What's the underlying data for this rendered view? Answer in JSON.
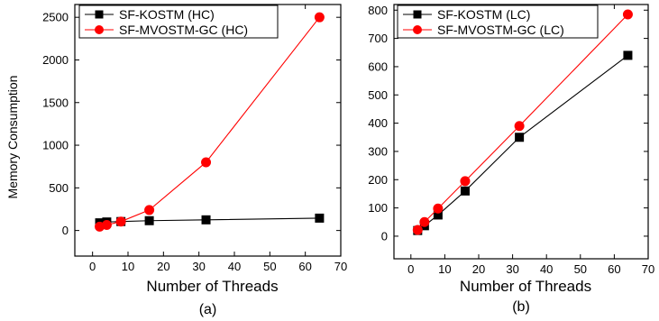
{
  "chart_data": [
    {
      "type": "line",
      "caption": "(a)",
      "xlabel": "Number of Threads",
      "ylabel": "Memory Consumption",
      "xlim": [
        -5,
        70
      ],
      "ylim": [
        -300,
        2650
      ],
      "xticks": [
        0,
        10,
        20,
        30,
        40,
        50,
        60,
        70
      ],
      "yticks": [
        0,
        500,
        1000,
        1500,
        2000,
        2500
      ],
      "legend": "top-left",
      "x": [
        2,
        4,
        8,
        16,
        32,
        64
      ],
      "series": [
        {
          "name": "SF-KOSTM (HC)",
          "marker": "square",
          "color": "#000000",
          "values": [
            90,
            100,
            105,
            115,
            125,
            145
          ]
        },
        {
          "name": "SF-MVOSTM-GC (HC)",
          "marker": "circle",
          "color": "#ff0000",
          "values": [
            45,
            65,
            105,
            240,
            800,
            2500
          ]
        }
      ]
    },
    {
      "type": "line",
      "caption": "(b)",
      "xlabel": "Number of Threads",
      "ylabel": "",
      "xlim": [
        -5,
        70
      ],
      "ylim": [
        -80,
        820
      ],
      "xticks": [
        0,
        10,
        20,
        30,
        40,
        50,
        60,
        70
      ],
      "yticks": [
        0,
        100,
        200,
        300,
        400,
        500,
        600,
        700,
        800
      ],
      "legend": "top-left",
      "x": [
        2,
        4,
        8,
        16,
        32,
        64
      ],
      "series": [
        {
          "name": "SF-KOSTM (LC)",
          "marker": "square",
          "color": "#000000",
          "values": [
            20,
            37,
            75,
            160,
            350,
            640
          ]
        },
        {
          "name": "SF-MVOSTM-GC (LC)",
          "marker": "circle",
          "color": "#ff0000",
          "values": [
            22,
            50,
            98,
            195,
            390,
            785
          ]
        }
      ]
    }
  ]
}
